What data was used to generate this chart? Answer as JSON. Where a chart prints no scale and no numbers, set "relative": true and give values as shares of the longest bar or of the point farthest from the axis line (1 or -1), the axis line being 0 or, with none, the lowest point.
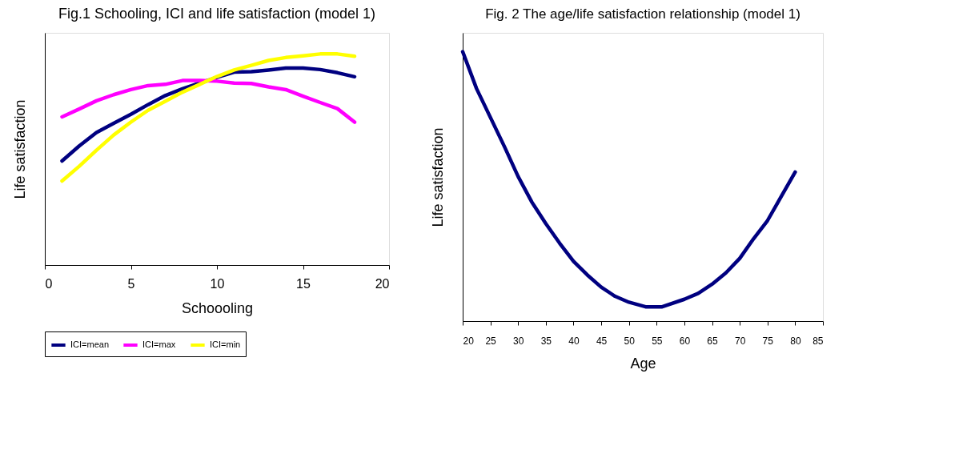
{
  "chart_data": [
    {
      "type": "line",
      "title": "Fig.1 Schooling, ICI and life satisfaction (model 1)",
      "xlabel": "Schoooling",
      "ylabel": "Life satisfaction",
      "relative": true,
      "xlim": [
        0,
        20
      ],
      "xticks": [
        0,
        5,
        10,
        15,
        20
      ],
      "grid": false,
      "legend": "bottom",
      "line_style": "solid",
      "marker": "none",
      "x": [
        1,
        2,
        3,
        4,
        5,
        6,
        7,
        8,
        9,
        10,
        11,
        12,
        13,
        14,
        15,
        16,
        17,
        18
      ],
      "series": [
        {
          "name": "ICI=mean",
          "color": "#000080",
          "values": [
            0.493,
            0.564,
            0.628,
            0.671,
            0.714,
            0.76,
            0.803,
            0.835,
            0.862,
            0.889,
            0.914,
            0.916,
            0.924,
            0.933,
            0.933,
            0.926,
            0.911,
            0.892
          ]
        },
        {
          "name": "ICI=max",
          "color": "#ff00ff",
          "values": [
            0.702,
            0.739,
            0.778,
            0.807,
            0.831,
            0.85,
            0.856,
            0.874,
            0.874,
            0.871,
            0.862,
            0.86,
            0.844,
            0.831,
            0.8,
            0.77,
            0.741,
            0.677
          ]
        },
        {
          "name": "ICI=min",
          "color": "#ffff00",
          "values": [
            0.398,
            0.468,
            0.544,
            0.616,
            0.677,
            0.733,
            0.776,
            0.819,
            0.856,
            0.893,
            0.924,
            0.946,
            0.969,
            0.983,
            0.991,
            1.0,
            1.0,
            0.989
          ]
        }
      ]
    },
    {
      "type": "line",
      "title": "Fig. 2 The age/life satisfaction relationship (model 1)",
      "xlabel": "Age",
      "ylabel": "Life satisfaction",
      "relative": true,
      "xlim": [
        20,
        85
      ],
      "xticks": [
        20,
        25,
        30,
        35,
        40,
        45,
        50,
        55,
        60,
        65,
        70,
        75,
        80,
        85
      ],
      "grid": false,
      "line_style": "solid",
      "marker": "none",
      "x": [
        20,
        22.5,
        25,
        27.5,
        30,
        32.5,
        35,
        37.5,
        40,
        42.5,
        45,
        47.5,
        50,
        53,
        56,
        60,
        62.5,
        65,
        67.5,
        70,
        72.5,
        75,
        77.5,
        80
      ],
      "series": [
        {
          "color": "#000080",
          "values": [
            1.0,
            0.863,
            0.756,
            0.649,
            0.537,
            0.441,
            0.362,
            0.289,
            0.222,
            0.171,
            0.126,
            0.092,
            0.07,
            0.053,
            0.053,
            0.081,
            0.103,
            0.137,
            0.179,
            0.233,
            0.306,
            0.373,
            0.463,
            0.553
          ]
        }
      ]
    }
  ]
}
